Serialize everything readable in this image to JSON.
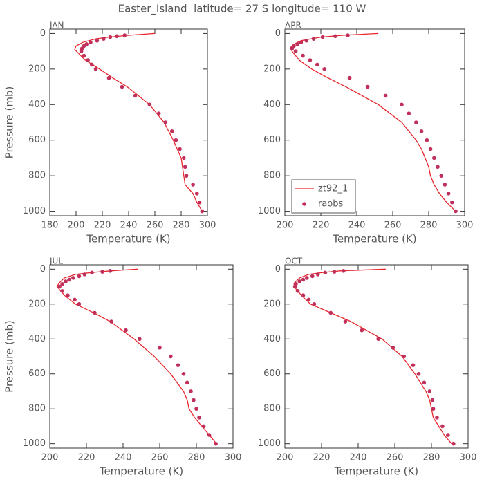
{
  "title": "Easter_Island  latitude= 27 S longitude= 110 W",
  "chart_data": [
    {
      "type": "line",
      "label": "JAN",
      "xlabel": "Temperature (K)",
      "ylabel": "Pressure (mb)",
      "xlim": [
        180,
        300
      ],
      "xticks": [
        180,
        200,
        220,
        240,
        260,
        280,
        300
      ],
      "ylim": [
        1025,
        -25
      ],
      "yticks": [
        0,
        200,
        400,
        600,
        800,
        1000
      ],
      "series": [
        {
          "style": "line",
          "color": "#e8262c",
          "x": [
            260,
            240,
            225,
            215,
            205,
            200,
            199,
            203,
            207,
            218,
            228,
            239,
            256,
            267,
            274,
            277,
            280,
            281,
            282,
            283,
            289,
            292,
            296
          ],
          "y": [
            0,
            10,
            20,
            30,
            50,
            70,
            90,
            120,
            150,
            200,
            250,
            300,
            400,
            500,
            600,
            650,
            700,
            750,
            800,
            850,
            900,
            950,
            1000
          ]
        },
        {
          "style": "marker",
          "color": "#c0305a",
          "x": [
            237,
            231,
            226,
            221,
            216,
            211,
            208,
            206,
            204.5,
            204,
            206,
            209,
            212,
            215,
            225,
            235,
            245,
            256,
            263,
            268,
            273,
            276,
            279,
            282,
            283,
            284,
            289,
            292,
            294,
            296
          ],
          "y": [
            10,
            15,
            20,
            30,
            40,
            50,
            60,
            70,
            85,
            100,
            125,
            150,
            175,
            200,
            250,
            300,
            350,
            400,
            450,
            500,
            550,
            600,
            650,
            700,
            750,
            800,
            850,
            900,
            950,
            1000
          ]
        }
      ]
    },
    {
      "type": "line",
      "label": "APR",
      "xlabel": "Temperature (K)",
      "xlim": [
        200,
        300
      ],
      "xticks": [
        200,
        220,
        240,
        260,
        280,
        300
      ],
      "ylim": [
        1025,
        -25
      ],
      "yticks": [
        0,
        200,
        400,
        600,
        800,
        1000
      ],
      "legend": "lower left",
      "series": [
        {
          "name": "zt92_1",
          "style": "line",
          "color": "#e8262c",
          "x": [
            252,
            232,
            220,
            209,
            205,
            203,
            204,
            208,
            215,
            224,
            234,
            252,
            265,
            273,
            276,
            278,
            280,
            281,
            283,
            286,
            290,
            295
          ],
          "y": [
            0,
            10,
            20,
            40,
            60,
            80,
            100,
            150,
            200,
            250,
            300,
            400,
            500,
            600,
            650,
            700,
            750,
            800,
            850,
            900,
            950,
            1000
          ]
        },
        {
          "name": "raobs",
          "style": "marker",
          "color": "#c0305a",
          "x": [
            235,
            228,
            221,
            216,
            212,
            209,
            207,
            205,
            204,
            206,
            210,
            214,
            218,
            222,
            236,
            246,
            256,
            265,
            269,
            273,
            276,
            279,
            281,
            283,
            285,
            287,
            289,
            291,
            293,
            295
          ],
          "y": [
            10,
            15,
            20,
            30,
            40,
            50,
            60,
            70,
            85,
            100,
            125,
            150,
            175,
            200,
            250,
            300,
            350,
            400,
            450,
            500,
            550,
            600,
            650,
            700,
            750,
            800,
            850,
            900,
            950,
            1000
          ]
        }
      ]
    },
    {
      "type": "line",
      "label": "JUL",
      "xlabel": "Temperature (K)",
      "ylabel": "Pressure (mb)",
      "xlim": [
        200,
        300
      ],
      "xticks": [
        200,
        220,
        240,
        260,
        280,
        300
      ],
      "ylim": [
        1025,
        -25
      ],
      "yticks": [
        0,
        200,
        400,
        600,
        800,
        1000
      ],
      "series": [
        {
          "style": "line",
          "color": "#e8262c",
          "x": [
            248,
            240,
            233,
            222,
            214,
            208,
            205,
            204,
            208,
            214,
            224,
            233,
            246,
            257,
            266,
            273,
            275,
            276,
            279,
            283,
            287,
            291
          ],
          "y": [
            0,
            5,
            10,
            20,
            30,
            50,
            80,
            100,
            150,
            200,
            250,
            300,
            400,
            500,
            600,
            700,
            750,
            800,
            850,
            900,
            950,
            1000
          ]
        },
        {
          "style": "marker",
          "color": "#c0305a",
          "x": [
            233,
            228.7,
            223,
            219,
            216,
            212.8,
            210.6,
            208.7,
            206.8,
            205.3,
            206.8,
            209.8,
            213.6,
            216,
            224.5,
            233.6,
            241.5,
            249,
            260,
            266,
            270,
            273,
            275,
            277,
            278.5,
            280,
            281.5,
            284,
            287,
            290.6
          ],
          "y": [
            10,
            15,
            20,
            30,
            40,
            50,
            60,
            70,
            85,
            100,
            125,
            150,
            175,
            200,
            250,
            300,
            350,
            400,
            450,
            500,
            550,
            600,
            650,
            700,
            750,
            800,
            850,
            900,
            950,
            1000
          ]
        }
      ]
    },
    {
      "type": "line",
      "label": "OCT",
      "xlabel": "Temperature (K)",
      "xlim": [
        200,
        300
      ],
      "xticks": [
        200,
        220,
        240,
        260,
        280,
        300
      ],
      "ylim": [
        1025,
        -25
      ],
      "yticks": [
        0,
        200,
        400,
        600,
        800,
        1000
      ],
      "series": [
        {
          "style": "line",
          "color": "#e8262c",
          "x": [
            255,
            230,
            220,
            213,
            208,
            205,
            205,
            209,
            214,
            225,
            236,
            253,
            264,
            271,
            277,
            279,
            280,
            281,
            284,
            287,
            291
          ],
          "y": [
            0,
            10,
            20,
            30,
            50,
            80,
            100,
            150,
            200,
            250,
            300,
            400,
            500,
            600,
            700,
            750,
            800,
            850,
            900,
            950,
            1000
          ]
        },
        {
          "style": "marker",
          "color": "#c0305a",
          "x": [
            232,
            227,
            222,
            218,
            215,
            212,
            210,
            208,
            206,
            205.5,
            207,
            210,
            213,
            216,
            225,
            233,
            242,
            251,
            259,
            265,
            270,
            273,
            276,
            279,
            280.5,
            281,
            283,
            286,
            289,
            292
          ],
          "y": [
            10,
            15,
            20,
            30,
            40,
            50,
            60,
            70,
            85,
            100,
            125,
            150,
            175,
            200,
            250,
            300,
            350,
            400,
            450,
            500,
            550,
            600,
            650,
            700,
            750,
            800,
            850,
            900,
            950,
            1000
          ]
        }
      ]
    }
  ]
}
